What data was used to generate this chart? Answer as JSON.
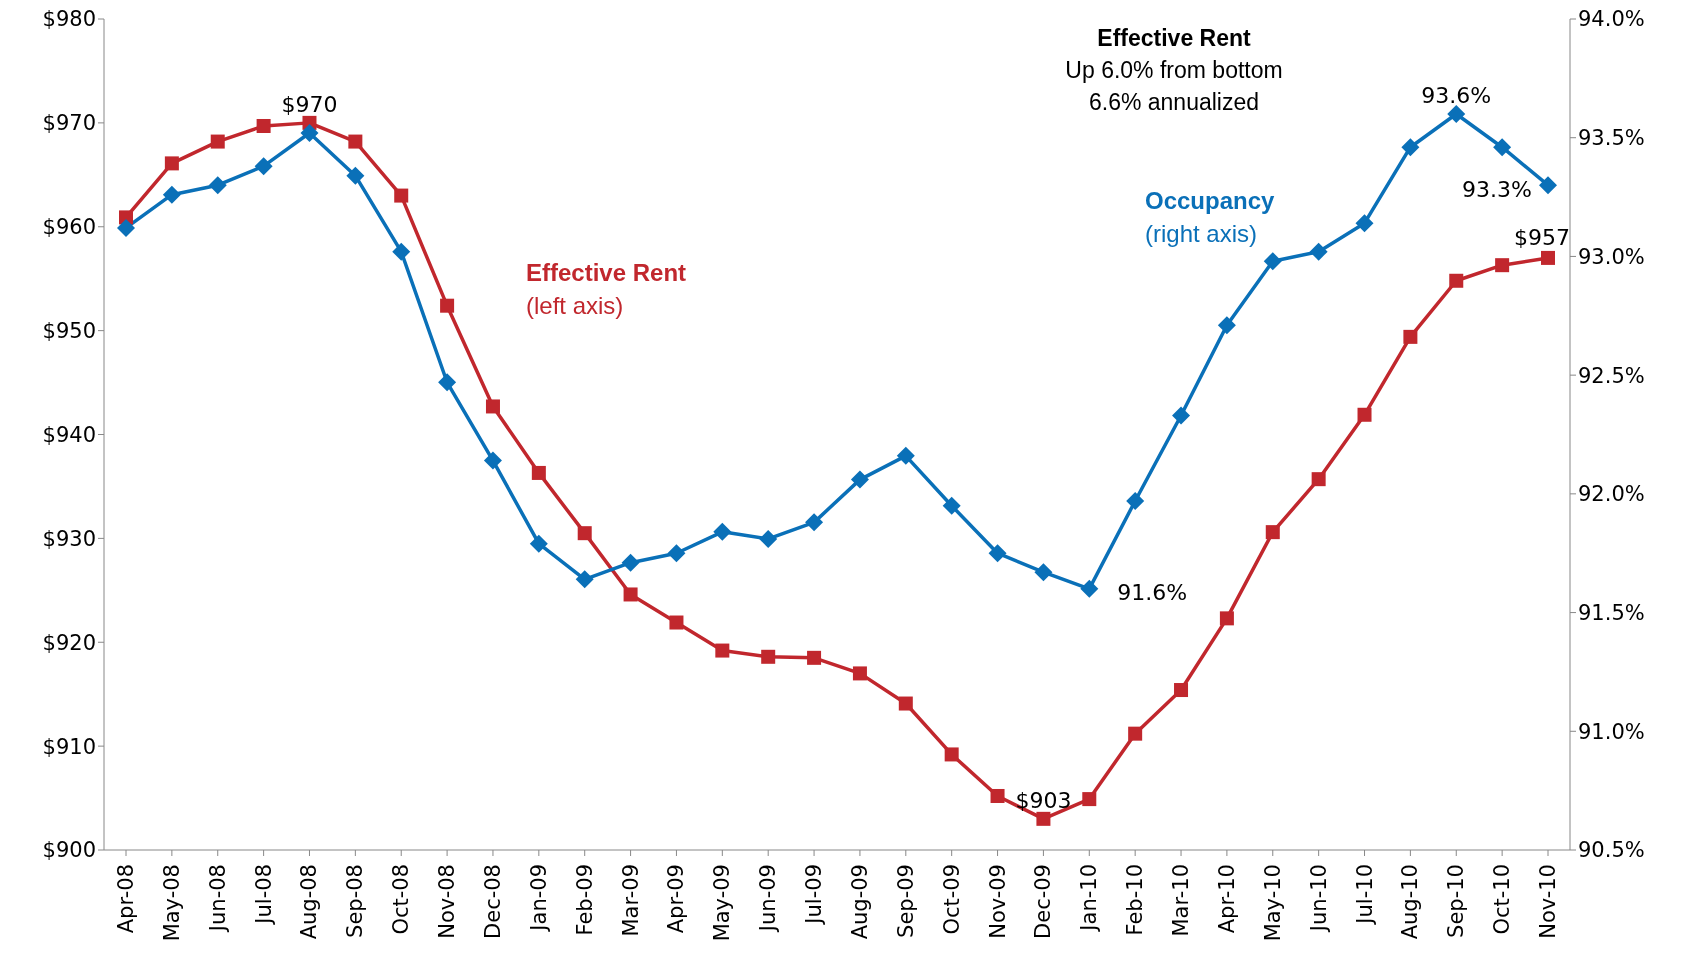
{
  "chart_data": {
    "type": "line",
    "categories": [
      "Apr-08",
      "May-08",
      "Jun-08",
      "Jul-08",
      "Aug-08",
      "Sep-08",
      "Oct-08",
      "Nov-08",
      "Dec-08",
      "Jan-09",
      "Feb-09",
      "Mar-09",
      "Apr-09",
      "May-09",
      "Jun-09",
      "Jul-09",
      "Aug-09",
      "Sep-09",
      "Oct-09",
      "Nov-09",
      "Dec-09",
      "Jan-10",
      "Feb-10",
      "Mar-10",
      "Apr-10",
      "May-10",
      "Jun-10",
      "Jul-10",
      "Aug-10",
      "Sep-10",
      "Oct-10",
      "Nov-10"
    ],
    "series": [
      {
        "name": "Effective Rent (left axis)",
        "color": "#c1272d",
        "marker": "square",
        "values": [
          960.9,
          966.1,
          968.2,
          969.7,
          970,
          968.2,
          963.0,
          952.4,
          942.7,
          936.3,
          930.5,
          924.6,
          921.9,
          919.2,
          918.6,
          918.5,
          917.0,
          914.1,
          909.2,
          905.2,
          903,
          904.9,
          911.2,
          915.4,
          922.3,
          930.6,
          935.7,
          941.9,
          949.4,
          954.8,
          956.3,
          957
        ],
        "value_labels": [
          null,
          null,
          null,
          null,
          "$970",
          null,
          null,
          null,
          null,
          null,
          null,
          null,
          null,
          null,
          null,
          null,
          null,
          null,
          null,
          null,
          "$903",
          null,
          null,
          null,
          null,
          null,
          null,
          null,
          null,
          null,
          null,
          "$957"
        ]
      },
      {
        "name": "Occupancy (right axis)",
        "color": "#0a70b8",
        "marker": "diamond",
        "axis": "y2",
        "values": [
          93.12,
          93.26,
          93.3,
          93.38,
          93.52,
          93.34,
          93.02,
          92.47,
          92.14,
          91.79,
          91.64,
          91.71,
          91.75,
          91.84,
          91.81,
          91.88,
          92.06,
          92.16,
          91.95,
          91.75,
          91.67,
          91.6,
          91.97,
          92.33,
          92.71,
          92.98,
          93.02,
          93.14,
          93.46,
          93.6,
          93.46,
          93.3
        ],
        "value_labels": [
          null,
          null,
          null,
          null,
          null,
          null,
          null,
          null,
          null,
          null,
          null,
          null,
          null,
          null,
          null,
          null,
          null,
          null,
          null,
          null,
          null,
          "91.6%",
          null,
          null,
          null,
          null,
          null,
          null,
          null,
          "93.6%",
          null,
          "93.3%"
        ]
      }
    ],
    "ylim": [
      900,
      980
    ],
    "yticks": [
      {
        "value": 900,
        "label": "$900"
      },
      {
        "value": 910,
        "label": "$910"
      },
      {
        "value": 920,
        "label": "$920"
      },
      {
        "value": 930,
        "label": "$930"
      },
      {
        "value": 940,
        "label": "$940"
      },
      {
        "value": 950,
        "label": "$950"
      },
      {
        "value": 960,
        "label": "$960"
      },
      {
        "value": 970,
        "label": "$970"
      },
      {
        "value": 980,
        "label": "$980"
      }
    ],
    "y2lim": [
      90.5,
      94.0
    ],
    "y2ticks": [
      {
        "value": 90.5,
        "label": "90.5%"
      },
      {
        "value": 91.0,
        "label": "91.0%"
      },
      {
        "value": 91.5,
        "label": "91.5%"
      },
      {
        "value": 92.0,
        "label": "92.0%"
      },
      {
        "value": 92.5,
        "label": "92.5%"
      },
      {
        "value": 93.0,
        "label": "93.0%"
      },
      {
        "value": 93.5,
        "label": "93.5%"
      },
      {
        "value": 94.0,
        "label": "94.0%"
      }
    ],
    "annotations": [
      "Effective Rent",
      "Up 6.0% from bottom",
      "6.6% annualized"
    ],
    "grid": false,
    "legend": false
  }
}
